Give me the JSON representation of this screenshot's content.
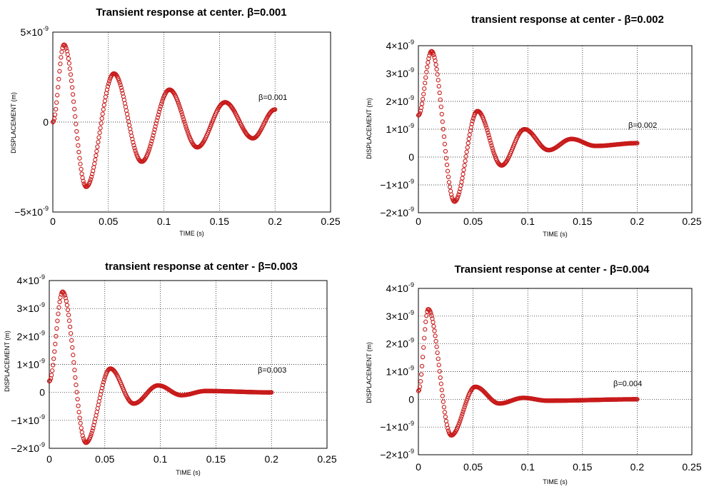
{
  "chart_data": [
    {
      "type": "scatter",
      "title": "Transient response at center. β=0.001",
      "xlabel": "TIME (s)",
      "ylabel": "DISPLACEMENT (m)",
      "annotation": "β=0.001",
      "xlim": [
        0,
        0.25
      ],
      "ylim": [
        -5e-09,
        5e-09
      ],
      "x_ticks": [
        "0",
        "0.05",
        "0.1",
        "0.15",
        "0.2",
        "0.25"
      ],
      "y_ticks": [
        {
          "value": 5e-09,
          "base": "5×10",
          "exp": "-9"
        },
        {
          "value": 0,
          "base": "0",
          "exp": ""
        },
        {
          "value": -5e-09,
          "base": "−5×10",
          "exp": "-9"
        }
      ],
      "beta": 0.001,
      "series": [
        {
          "x": [
            0,
            0.01,
            0.03,
            0.055,
            0.08,
            0.105,
            0.13,
            0.155,
            0.18,
            0.2
          ],
          "y": [
            0,
            4.3e-09,
            -3.6e-09,
            2.7e-09,
            -2.2e-09,
            1.8e-09,
            -1.4e-09,
            1.1e-09,
            -9e-10,
            7e-10
          ]
        }
      ]
    },
    {
      "type": "scatter",
      "title": "transient response at center - β=0.002",
      "xlabel": "TIME (s)",
      "ylabel": "DISPLACEMENT (m)",
      "annotation": "β=0.002",
      "xlim": [
        0,
        0.25
      ],
      "ylim": [
        -2e-09,
        4e-09
      ],
      "x_ticks": [
        "0",
        "0.05",
        "0.1",
        "0.15",
        "0.2",
        "0.25"
      ],
      "y_ticks": [
        {
          "value": 4e-09,
          "base": "4×10",
          "exp": "-9"
        },
        {
          "value": 3e-09,
          "base": "3×10",
          "exp": "-9"
        },
        {
          "value": 2e-09,
          "base": "2×10",
          "exp": "-9"
        },
        {
          "value": 1e-09,
          "base": "1×10",
          "exp": "-9"
        },
        {
          "value": 0,
          "base": "0",
          "exp": ""
        },
        {
          "value": -1e-09,
          "base": "−1×10",
          "exp": "-9"
        },
        {
          "value": -2e-09,
          "base": "−2×10",
          "exp": "-9"
        }
      ],
      "beta": 0.002,
      "series": [
        {
          "x": [
            0,
            0.012,
            0.033,
            0.054,
            0.076,
            0.097,
            0.119,
            0.14,
            0.162,
            0.2
          ],
          "y": [
            1.5e-09,
            3.8e-09,
            -1.6e-09,
            1.65e-09,
            -3e-10,
            1e-09,
            2.5e-10,
            6.5e-10,
            4e-10,
            5e-10
          ]
        }
      ]
    },
    {
      "type": "scatter",
      "title": "transient response at center - β=0.003",
      "xlabel": "TIME (s)",
      "ylabel": "DISPLACEMENT (m)",
      "annotation": "β=0.003",
      "xlim": [
        0,
        0.25
      ],
      "ylim": [
        -2e-09,
        4e-09
      ],
      "x_ticks": [
        "0",
        "0.05",
        "0.1",
        "0.15",
        "0.2",
        "0.25"
      ],
      "y_ticks": [
        {
          "value": 4e-09,
          "base": "4×10",
          "exp": "-9"
        },
        {
          "value": 3e-09,
          "base": "3×10",
          "exp": "-9"
        },
        {
          "value": 2e-09,
          "base": "2×10",
          "exp": "-9"
        },
        {
          "value": 1e-09,
          "base": "1×10",
          "exp": "-9"
        },
        {
          "value": 0,
          "base": "0",
          "exp": ""
        },
        {
          "value": -1e-09,
          "base": "−1×10",
          "exp": "-9"
        },
        {
          "value": -2e-09,
          "base": "−2×10",
          "exp": "-9"
        }
      ],
      "beta": 0.003,
      "series": [
        {
          "x": [
            0,
            0.012,
            0.033,
            0.055,
            0.076,
            0.098,
            0.119,
            0.141,
            0.2
          ],
          "y": [
            4e-10,
            3.6e-09,
            -1.8e-09,
            8.5e-10,
            -4e-10,
            2.5e-10,
            -1e-10,
            5e-11,
            0
          ]
        }
      ]
    },
    {
      "type": "scatter",
      "title": "Transient response at center - β=0.004",
      "xlabel": "TIME (s)",
      "ylabel": "DISPLACEMENT (m)",
      "annotation": "β=0.004",
      "xlim": [
        0,
        0.25
      ],
      "ylim": [
        -2e-09,
        4e-09
      ],
      "x_ticks": [
        "0",
        "0.05",
        "0.1",
        "0.15",
        "0.2",
        "0.25"
      ],
      "y_ticks": [
        {
          "value": 4e-09,
          "base": "4×10",
          "exp": "-9"
        },
        {
          "value": 3e-09,
          "base": "3×10",
          "exp": "-9"
        },
        {
          "value": 2e-09,
          "base": "2×10",
          "exp": "-9"
        },
        {
          "value": 1e-09,
          "base": "1×10",
          "exp": "-9"
        },
        {
          "value": 0,
          "base": "0",
          "exp": ""
        },
        {
          "value": -1e-09,
          "base": "−1×10",
          "exp": "-9"
        },
        {
          "value": -2e-09,
          "base": "−2×10",
          "exp": "-9"
        }
      ],
      "beta": 0.004,
      "series": [
        {
          "x": [
            0,
            0.009,
            0.03,
            0.052,
            0.074,
            0.096,
            0.118,
            0.2
          ],
          "y": [
            3e-10,
            3.25e-09,
            -1.3e-09,
            4.5e-10,
            -1.5e-10,
            5e-11,
            -5e-11,
            0
          ]
        }
      ]
    }
  ]
}
